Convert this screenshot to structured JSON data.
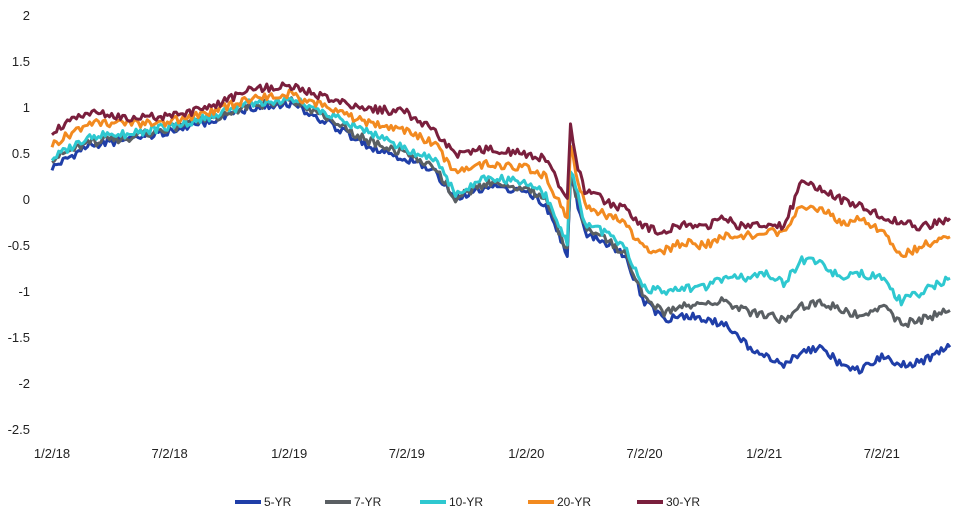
{
  "chart_data": {
    "type": "line",
    "title": "",
    "xlabel": "",
    "ylabel": "",
    "ylim": [
      -2.5,
      2
    ],
    "yticks": [
      "2",
      "1.5",
      "1",
      "0.5",
      "0",
      "-0.5",
      "-1",
      "-1.5",
      "-2",
      "-2.5"
    ],
    "xticks": [
      "1/2/18",
      "7/2/18",
      "1/2/19",
      "7/2/19",
      "1/2/20",
      "7/2/20",
      "1/2/21",
      "7/2/21"
    ],
    "xlim": [
      "1/2/18",
      "10/15/21"
    ],
    "grid": false,
    "legend_position": "bottom",
    "x": [
      "1/2/18",
      "3/1/18",
      "5/1/18",
      "7/2/18",
      "9/1/18",
      "11/1/18",
      "1/2/19",
      "3/1/19",
      "5/1/19",
      "7/2/19",
      "8/15/19",
      "9/15/19",
      "11/1/19",
      "1/2/20",
      "2/1/20",
      "3/5/20",
      "3/10/20",
      "3/18/20",
      "4/1/20",
      "5/1/20",
      "6/1/20",
      "7/2/20",
      "8/1/20",
      "9/1/20",
      "10/1/20",
      "11/1/20",
      "12/1/20",
      "1/2/21",
      "2/1/21",
      "3/1/21",
      "4/1/21",
      "5/1/21",
      "6/1/21",
      "7/2/21",
      "8/1/21",
      "9/1/21",
      "10/15/21"
    ],
    "series": [
      {
        "name": "5-YR",
        "color": "#1f3ea8",
        "values": [
          0.35,
          0.6,
          0.65,
          0.75,
          0.85,
          1.0,
          1.05,
          0.85,
          0.6,
          0.45,
          0.3,
          0.0,
          0.15,
          0.1,
          -0.05,
          -0.6,
          0.2,
          0.05,
          -0.35,
          -0.45,
          -0.6,
          -1.1,
          -1.3,
          -1.25,
          -1.3,
          -1.35,
          -1.55,
          -1.7,
          -1.8,
          -1.65,
          -1.6,
          -1.8,
          -1.85,
          -1.7,
          -1.8,
          -1.75,
          -1.6
        ]
      },
      {
        "name": "7-YR",
        "color": "#5a5f63",
        "values": [
          0.45,
          0.62,
          0.68,
          0.78,
          0.88,
          1.02,
          1.08,
          0.9,
          0.65,
          0.5,
          0.35,
          0.02,
          0.18,
          0.14,
          0.0,
          -0.55,
          0.25,
          0.08,
          -0.3,
          -0.42,
          -0.58,
          -1.05,
          -1.22,
          -1.15,
          -1.15,
          -1.1,
          -1.2,
          -1.25,
          -1.3,
          -1.15,
          -1.1,
          -1.2,
          -1.25,
          -1.15,
          -1.35,
          -1.3,
          -1.2
        ]
      },
      {
        "name": "10-YR",
        "color": "#2ec8d0",
        "values": [
          0.45,
          0.7,
          0.72,
          0.8,
          0.9,
          1.05,
          1.1,
          0.95,
          0.75,
          0.55,
          0.45,
          0.05,
          0.25,
          0.2,
          0.05,
          -0.45,
          0.35,
          0.15,
          -0.25,
          -0.35,
          -0.5,
          -0.95,
          -1.0,
          -0.95,
          -0.95,
          -0.85,
          -0.85,
          -0.8,
          -0.9,
          -0.65,
          -0.7,
          -0.85,
          -0.8,
          -0.85,
          -1.1,
          -1.0,
          -0.85
        ]
      },
      {
        "name": "20-YR",
        "color": "#f28a20",
        "values": [
          0.6,
          0.85,
          0.82,
          0.85,
          0.95,
          1.1,
          1.15,
          1.0,
          0.85,
          0.75,
          0.6,
          0.3,
          0.4,
          0.35,
          0.25,
          -0.2,
          0.6,
          0.3,
          -0.05,
          -0.15,
          -0.25,
          -0.55,
          -0.55,
          -0.45,
          -0.5,
          -0.4,
          -0.4,
          -0.35,
          -0.35,
          -0.05,
          -0.1,
          -0.25,
          -0.2,
          -0.35,
          -0.6,
          -0.5,
          -0.4
        ]
      },
      {
        "name": "30-YR",
        "color": "#7a1f3d",
        "values": [
          0.75,
          0.95,
          0.9,
          0.9,
          1.0,
          1.2,
          1.25,
          1.1,
          1.0,
          0.95,
          0.75,
          0.5,
          0.55,
          0.5,
          0.45,
          0.0,
          0.8,
          0.45,
          0.1,
          0.0,
          -0.1,
          -0.3,
          -0.35,
          -0.25,
          -0.3,
          -0.2,
          -0.3,
          -0.25,
          -0.3,
          0.2,
          0.1,
          0.0,
          -0.05,
          -0.2,
          -0.25,
          -0.3,
          -0.2
        ]
      }
    ]
  }
}
